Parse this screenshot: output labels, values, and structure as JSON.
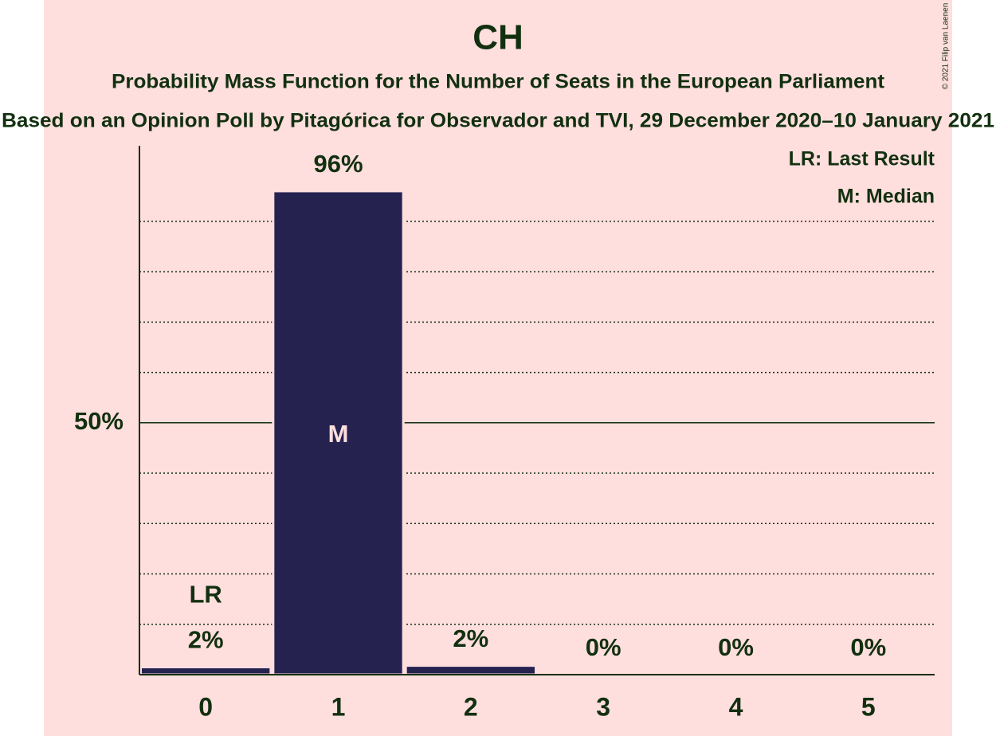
{
  "chart_data": {
    "type": "bar",
    "title": "CH",
    "subtitle": "Probability Mass Function for the Number of Seats in the European Parliament",
    "caption": "Based on an Opinion Poll by Pitagórica for Observador and TVI, 29 December 2020–10 January 2021",
    "copyright": "© 2021 Filip van Laenen",
    "categories": [
      "0",
      "1",
      "2",
      "3",
      "4",
      "5"
    ],
    "values": [
      1.5,
      96,
      1.8,
      0,
      0,
      0
    ],
    "value_labels": [
      "2%",
      "96%",
      "2%",
      "0%",
      "0%",
      "0%"
    ],
    "color": "#252250",
    "ylim": [
      0,
      105
    ],
    "yticks": [
      {
        "value": 50,
        "label": "50%"
      }
    ],
    "grid_lines": [
      10,
      20,
      30,
      40,
      60,
      70,
      80,
      90
    ],
    "markers": [
      {
        "label": "LR",
        "category": "0"
      },
      {
        "label": "M",
        "category": "1"
      }
    ],
    "legend": [
      "LR: Last Result",
      "M: Median"
    ]
  }
}
